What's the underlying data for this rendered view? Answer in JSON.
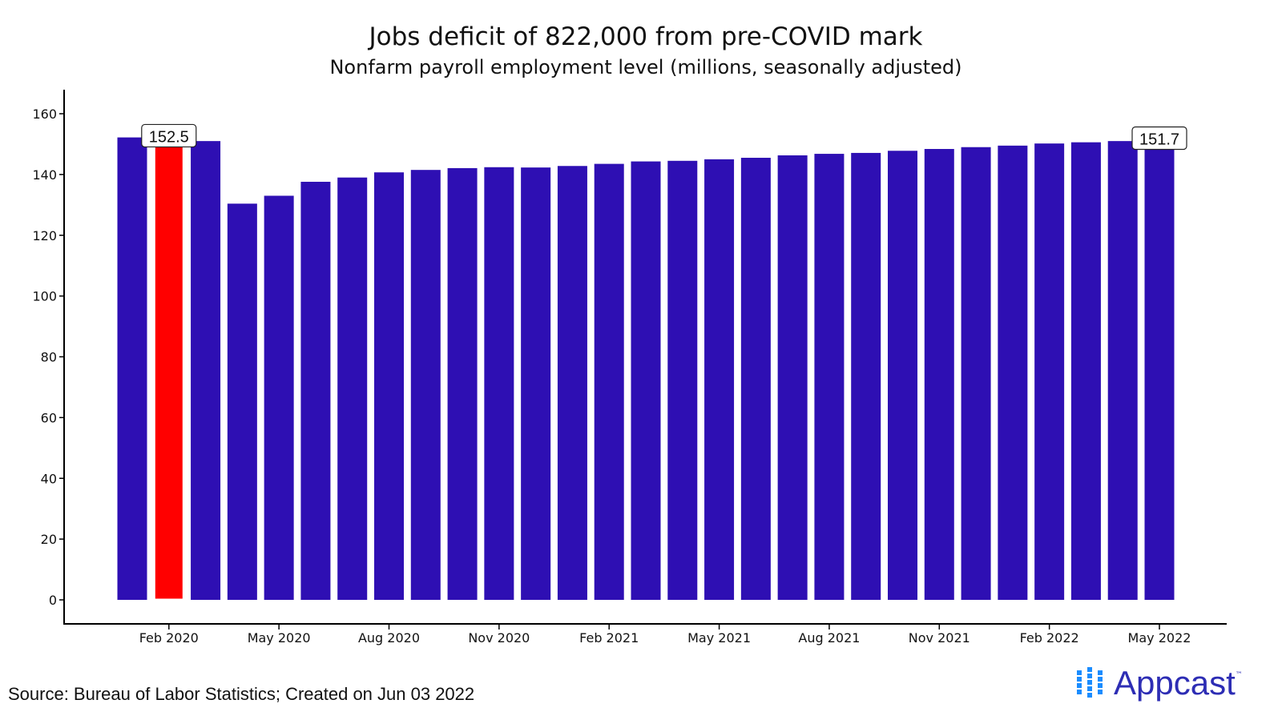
{
  "chart_data": {
    "type": "bar",
    "title": "Jobs deficit of 822,000 from pre-COVID mark",
    "subtitle": "Nonfarm payroll employment level (millions, seasonally adjusted)",
    "xlabel": "",
    "ylabel": "",
    "ylim": [
      0,
      160
    ],
    "yticks": [
      0,
      20,
      40,
      60,
      80,
      100,
      120,
      140,
      160
    ],
    "categories": [
      "Jan 2020",
      "Feb 2020",
      "Mar 2020",
      "Apr 2020",
      "May 2020",
      "Jun 2020",
      "Jul 2020",
      "Aug 2020",
      "Sep 2020",
      "Oct 2020",
      "Nov 2020",
      "Dec 2020",
      "Jan 2021",
      "Feb 2021",
      "Mar 2021",
      "Apr 2021",
      "May 2021",
      "Jun 2021",
      "Jul 2021",
      "Aug 2021",
      "Sep 2021",
      "Oct 2021",
      "Nov 2021",
      "Dec 2021",
      "Jan 2022",
      "Feb 2022",
      "Mar 2022",
      "Apr 2022",
      "May 2022"
    ],
    "xtick_labels": [
      "Feb 2020",
      "May 2020",
      "Aug 2020",
      "Nov 2020",
      "Feb 2021",
      "May 2021",
      "Aug 2021",
      "Nov 2021",
      "Feb 2022",
      "May 2022"
    ],
    "values": [
      152.2,
      152.5,
      151.0,
      130.4,
      133.0,
      137.6,
      139.0,
      140.7,
      141.5,
      142.1,
      142.4,
      142.3,
      142.8,
      143.5,
      144.3,
      144.5,
      145.0,
      145.5,
      146.3,
      146.8,
      147.1,
      147.8,
      148.4,
      149.0,
      149.5,
      150.2,
      150.6,
      151.0,
      151.7
    ],
    "highlight": "Feb 2020",
    "annotations": [
      {
        "category": "Feb 2020",
        "label": "152.5"
      },
      {
        "category": "May 2022",
        "label": "151.7"
      }
    ],
    "colors": {
      "bar": "#2e0fb3",
      "highlight": "#ff0000"
    },
    "grid": false,
    "legend": "none"
  },
  "footer": {
    "source": "Source: Bureau of Labor Statistics; Created on Jun 03 2022",
    "logo_text": "Appcast",
    "logo_tm": "™"
  },
  "logo_colors": {
    "dots": "#1a8cff",
    "text": "#2d2db4"
  }
}
